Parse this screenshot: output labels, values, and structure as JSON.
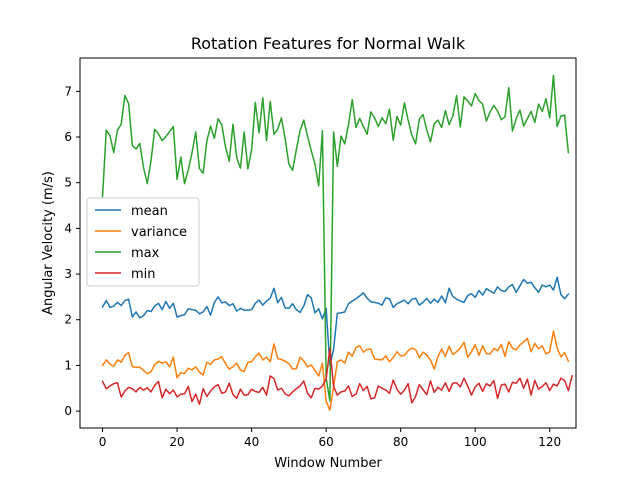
{
  "chart_data": {
    "type": "line",
    "title": "Rotation Features for Normal Walk",
    "xlabel": "Window Number",
    "ylabel": "Angular Velocity (m/s)",
    "xlim": [
      -6.05,
      127.05
    ],
    "ylim": [
      -0.37,
      7.73
    ],
    "xticks": [
      0,
      20,
      40,
      60,
      80,
      100,
      120
    ],
    "yticks": [
      0,
      1,
      2,
      3,
      4,
      5,
      6,
      7
    ],
    "grid": false,
    "legend_position": "center-left",
    "series": [
      {
        "name": "mean",
        "color": "#1f77b4",
        "values": [
          2.28,
          2.42,
          2.27,
          2.3,
          2.38,
          2.31,
          2.42,
          2.45,
          2.06,
          2.17,
          2.04,
          2.09,
          2.2,
          2.18,
          2.3,
          2.36,
          2.22,
          2.4,
          2.25,
          2.36,
          2.06,
          2.09,
          2.11,
          2.24,
          2.22,
          2.21,
          2.13,
          2.17,
          2.29,
          2.1,
          2.38,
          2.5,
          2.37,
          2.39,
          2.31,
          2.35,
          2.19,
          2.25,
          2.21,
          2.21,
          2.22,
          2.36,
          2.43,
          2.32,
          2.41,
          2.47,
          2.69,
          2.37,
          2.49,
          2.26,
          2.25,
          2.35,
          2.22,
          2.16,
          2.3,
          2.55,
          2.48,
          2.15,
          2.24,
          2.02,
          2.25,
          1.0,
          1.35,
          2.14,
          2.15,
          2.17,
          2.35,
          2.41,
          2.46,
          2.52,
          2.59,
          2.47,
          2.39,
          2.38,
          2.36,
          2.32,
          2.48,
          2.46,
          2.27,
          2.35,
          2.39,
          2.43,
          2.35,
          2.45,
          2.47,
          2.32,
          2.38,
          2.47,
          2.36,
          2.45,
          2.38,
          2.52,
          2.37,
          2.69,
          2.51,
          2.45,
          2.41,
          2.38,
          2.53,
          2.57,
          2.49,
          2.64,
          2.54,
          2.68,
          2.63,
          2.58,
          2.72,
          2.64,
          2.62,
          2.72,
          2.77,
          2.6,
          2.74,
          2.88,
          2.8,
          2.82,
          2.7,
          2.6,
          2.76,
          2.72,
          2.76,
          2.65,
          2.93,
          2.55,
          2.46,
          2.56
        ]
      },
      {
        "name": "variance",
        "color": "#ff7f0e",
        "values": [
          1.0,
          1.12,
          1.03,
          0.98,
          1.12,
          1.07,
          1.22,
          1.28,
          0.97,
          0.96,
          0.96,
          0.89,
          0.82,
          0.86,
          1.02,
          1.09,
          1.05,
          1.08,
          0.97,
          1.18,
          0.73,
          0.84,
          0.82,
          0.94,
          0.9,
          0.97,
          0.85,
          0.79,
          1.07,
          1.02,
          1.12,
          1.14,
          1.19,
          1.04,
          0.92,
          0.97,
          1.05,
          0.9,
          0.87,
          1.07,
          1.08,
          1.19,
          1.27,
          1.12,
          1.18,
          1.08,
          1.47,
          1.15,
          1.13,
          1.09,
          1.04,
          0.92,
          0.93,
          1.18,
          1.1,
          0.97,
          1.01,
          0.89,
          0.77,
          1.05,
          0.22,
          0.02,
          0.53,
          1.08,
          1.12,
          1.05,
          1.29,
          1.2,
          1.39,
          1.43,
          1.29,
          1.35,
          1.36,
          1.14,
          1.13,
          1.12,
          1.21,
          1.08,
          1.17,
          1.3,
          1.21,
          1.22,
          1.32,
          1.38,
          1.35,
          1.17,
          1.29,
          1.23,
          1.12,
          0.92,
          1.19,
          1.36,
          1.2,
          1.42,
          1.24,
          1.3,
          1.38,
          1.51,
          1.18,
          1.3,
          1.45,
          1.22,
          1.43,
          1.26,
          1.25,
          1.37,
          1.32,
          1.46,
          1.2,
          1.52,
          1.38,
          1.34,
          1.45,
          1.51,
          1.59,
          1.3,
          1.48,
          1.36,
          1.43,
          1.25,
          1.3,
          1.75,
          1.38,
          1.19,
          1.28,
          1.09
        ]
      },
      {
        "name": "max",
        "color": "#2ca02c",
        "values": [
          4.7,
          6.15,
          6.03,
          5.66,
          6.15,
          6.28,
          6.91,
          6.73,
          5.81,
          5.74,
          5.86,
          5.33,
          4.98,
          5.48,
          6.17,
          6.07,
          5.92,
          6.01,
          6.12,
          6.23,
          5.07,
          5.56,
          4.98,
          5.28,
          5.65,
          6.11,
          5.31,
          5.21,
          5.92,
          6.24,
          5.97,
          6.4,
          6.27,
          5.78,
          5.47,
          6.28,
          5.55,
          5.32,
          6.11,
          5.3,
          5.72,
          6.76,
          6.09,
          6.86,
          5.92,
          6.78,
          6.06,
          6.17,
          6.42,
          5.96,
          5.41,
          5.27,
          5.72,
          6.14,
          6.37,
          6.02,
          5.7,
          5.41,
          4.93,
          6.14,
          0.73,
          0.22,
          6.11,
          5.36,
          6.02,
          5.85,
          6.27,
          6.82,
          6.21,
          6.41,
          6.23,
          6.06,
          6.55,
          6.42,
          6.23,
          6.42,
          6.29,
          6.61,
          5.93,
          6.45,
          6.26,
          6.75,
          6.37,
          6.04,
          5.85,
          6.39,
          6.49,
          6.16,
          5.89,
          6.29,
          6.37,
          6.21,
          6.58,
          6.27,
          6.46,
          6.91,
          6.22,
          6.88,
          6.79,
          6.68,
          6.95,
          6.8,
          6.72,
          6.35,
          6.55,
          6.69,
          6.57,
          6.38,
          6.44,
          7.08,
          6.13,
          6.4,
          6.59,
          6.24,
          6.4,
          6.56,
          6.32,
          6.72,
          6.56,
          6.84,
          6.42,
          7.35,
          6.23,
          6.46,
          6.48,
          5.66
        ]
      },
      {
        "name": "min",
        "color": "#d62728",
        "values": [
          0.65,
          0.49,
          0.55,
          0.6,
          0.62,
          0.31,
          0.44,
          0.52,
          0.49,
          0.42,
          0.52,
          0.46,
          0.51,
          0.42,
          0.56,
          0.65,
          0.29,
          0.48,
          0.38,
          0.46,
          0.31,
          0.37,
          0.38,
          0.54,
          0.21,
          0.37,
          0.15,
          0.49,
          0.32,
          0.44,
          0.53,
          0.58,
          0.39,
          0.42,
          0.61,
          0.36,
          0.28,
          0.48,
          0.35,
          0.36,
          0.48,
          0.43,
          0.41,
          0.52,
          0.35,
          0.77,
          0.71,
          0.46,
          0.5,
          0.38,
          0.33,
          0.42,
          0.49,
          0.55,
          0.66,
          0.39,
          0.29,
          0.5,
          0.48,
          0.55,
          0.7,
          1.37,
          0.54,
          0.35,
          0.42,
          0.44,
          0.55,
          0.32,
          0.37,
          0.6,
          0.45,
          0.54,
          0.27,
          0.29,
          0.55,
          0.5,
          0.46,
          0.39,
          0.68,
          0.48,
          0.37,
          0.46,
          0.6,
          0.18,
          0.32,
          0.58,
          0.47,
          0.36,
          0.66,
          0.41,
          0.52,
          0.46,
          0.62,
          0.43,
          0.61,
          0.62,
          0.53,
          0.72,
          0.55,
          0.35,
          0.53,
          0.61,
          0.43,
          0.6,
          0.55,
          0.67,
          0.28,
          0.57,
          0.59,
          0.42,
          0.63,
          0.61,
          0.72,
          0.5,
          0.7,
          0.35,
          0.67,
          0.48,
          0.54,
          0.62,
          0.45,
          0.59,
          0.55,
          0.72,
          0.67,
          0.45,
          0.77
        ]
      }
    ]
  }
}
